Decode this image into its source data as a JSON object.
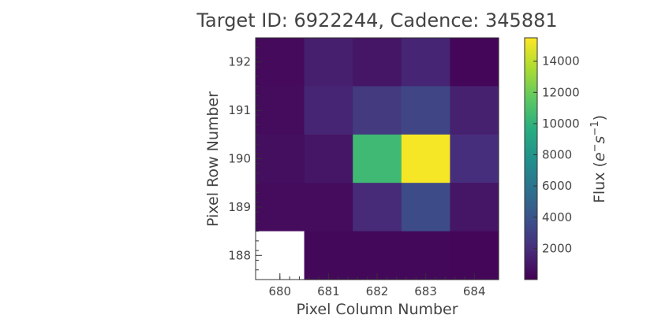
{
  "chart_data": {
    "type": "heatmap",
    "title": "Target ID: 6922244, Cadence: 345881",
    "xlabel": "Pixel Column Number",
    "ylabel": "Pixel Row Number",
    "x_ticks": [
      "680",
      "681",
      "682",
      "683",
      "684"
    ],
    "y_ticks": [
      "188",
      "189",
      "190",
      "191",
      "192"
    ],
    "columns": [
      680,
      681,
      682,
      683,
      684
    ],
    "rows": [
      192,
      191,
      190,
      189,
      188
    ],
    "values": [
      [
        400,
        1300,
        900,
        1600,
        200
      ],
      [
        500,
        1600,
        2600,
        3200,
        1400
      ],
      [
        600,
        900,
        10500,
        15300,
        2000
      ],
      [
        500,
        500,
        1800,
        3500,
        900
      ],
      [
        null,
        300,
        300,
        300,
        200
      ]
    ],
    "colorbar": {
      "label": "Flux ($e^{-}s^{-1}$)",
      "label_main": "Flux (",
      "label_base": "e",
      "label_sup1": "−",
      "label_mid": "s",
      "label_sup2": "−1",
      "label_close": ")",
      "min": 0,
      "max": 15500,
      "ticks": [
        "2000",
        "4000",
        "6000",
        "8000",
        "10000",
        "12000",
        "14000"
      ],
      "tick_values": [
        2000,
        4000,
        6000,
        8000,
        10000,
        12000,
        14000
      ]
    },
    "colormap": "viridis",
    "grid": false
  }
}
